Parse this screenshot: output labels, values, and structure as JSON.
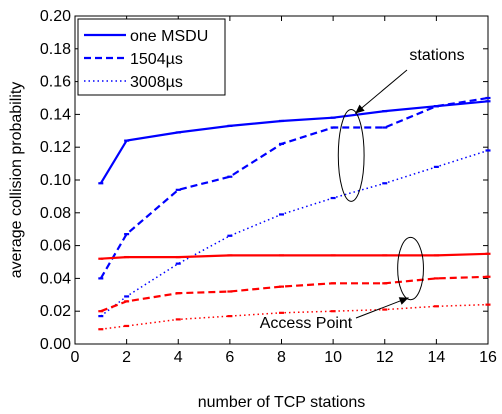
{
  "chart_data": {
    "type": "line",
    "xlabel": "number of TCP stations",
    "ylabel": "average collision probability",
    "xlim": [
      0,
      16
    ],
    "ylim": [
      0,
      0.2
    ],
    "xticks": [
      0,
      2,
      4,
      6,
      8,
      10,
      12,
      14,
      16
    ],
    "xtick_labels": [
      "0",
      "2",
      "4",
      "6",
      "8",
      "10",
      "12",
      "14",
      "16"
    ],
    "yticks": [
      0,
      0.02,
      0.04,
      0.06,
      0.08,
      0.1,
      0.12,
      0.14,
      0.16,
      0.18,
      0.2
    ],
    "ytick_labels": [
      "0.00",
      "0.02",
      "0.04",
      "0.06",
      "0.08",
      "0.10",
      "0.12",
      "0.14",
      "0.16",
      "0.18",
      "0.20"
    ],
    "grid": false,
    "legend_position": "top-left",
    "x": [
      1,
      2,
      4,
      6,
      8,
      10,
      12,
      14,
      16
    ],
    "series": [
      {
        "name": "one MSDU",
        "group": "stations",
        "color": "#0000ff",
        "style": "solid",
        "values": [
          0.098,
          0.124,
          0.129,
          0.133,
          0.136,
          0.138,
          0.142,
          0.145,
          0.148
        ]
      },
      {
        "name": "1504µs",
        "group": "stations",
        "color": "#0000ff",
        "style": "dashed",
        "values": [
          0.04,
          0.067,
          0.094,
          0.102,
          0.122,
          0.132,
          0.132,
          0.145,
          0.15
        ]
      },
      {
        "name": "3008µs",
        "group": "stations",
        "color": "#0000ff",
        "style": "dotted",
        "values": [
          0.017,
          0.029,
          0.049,
          0.066,
          0.079,
          0.089,
          0.098,
          0.108,
          0.118
        ]
      },
      {
        "name": "",
        "group": "access-point",
        "color": "#ff0000",
        "style": "solid",
        "values": [
          0.052,
          0.053,
          0.053,
          0.054,
          0.054,
          0.054,
          0.054,
          0.054,
          0.055
        ]
      },
      {
        "name": "",
        "group": "access-point",
        "color": "#ff0000",
        "style": "dashed",
        "values": [
          0.02,
          0.026,
          0.031,
          0.032,
          0.035,
          0.037,
          0.037,
          0.04,
          0.041
        ]
      },
      {
        "name": "",
        "group": "access-point",
        "color": "#ff0000",
        "style": "dotted",
        "values": [
          0.009,
          0.011,
          0.015,
          0.017,
          0.019,
          0.02,
          0.021,
          0.023,
          0.024
        ]
      }
    ],
    "annotations": [
      {
        "id": "stations",
        "text": "stations",
        "ellipse_center": [
          10.7,
          0.115
        ],
        "ellipse_radius": [
          0.5,
          0.028
        ]
      },
      {
        "id": "access-point",
        "text": "Access Point",
        "ellipse_center": [
          13,
          0.046
        ],
        "ellipse_radius": [
          0.5,
          0.019
        ]
      }
    ]
  }
}
